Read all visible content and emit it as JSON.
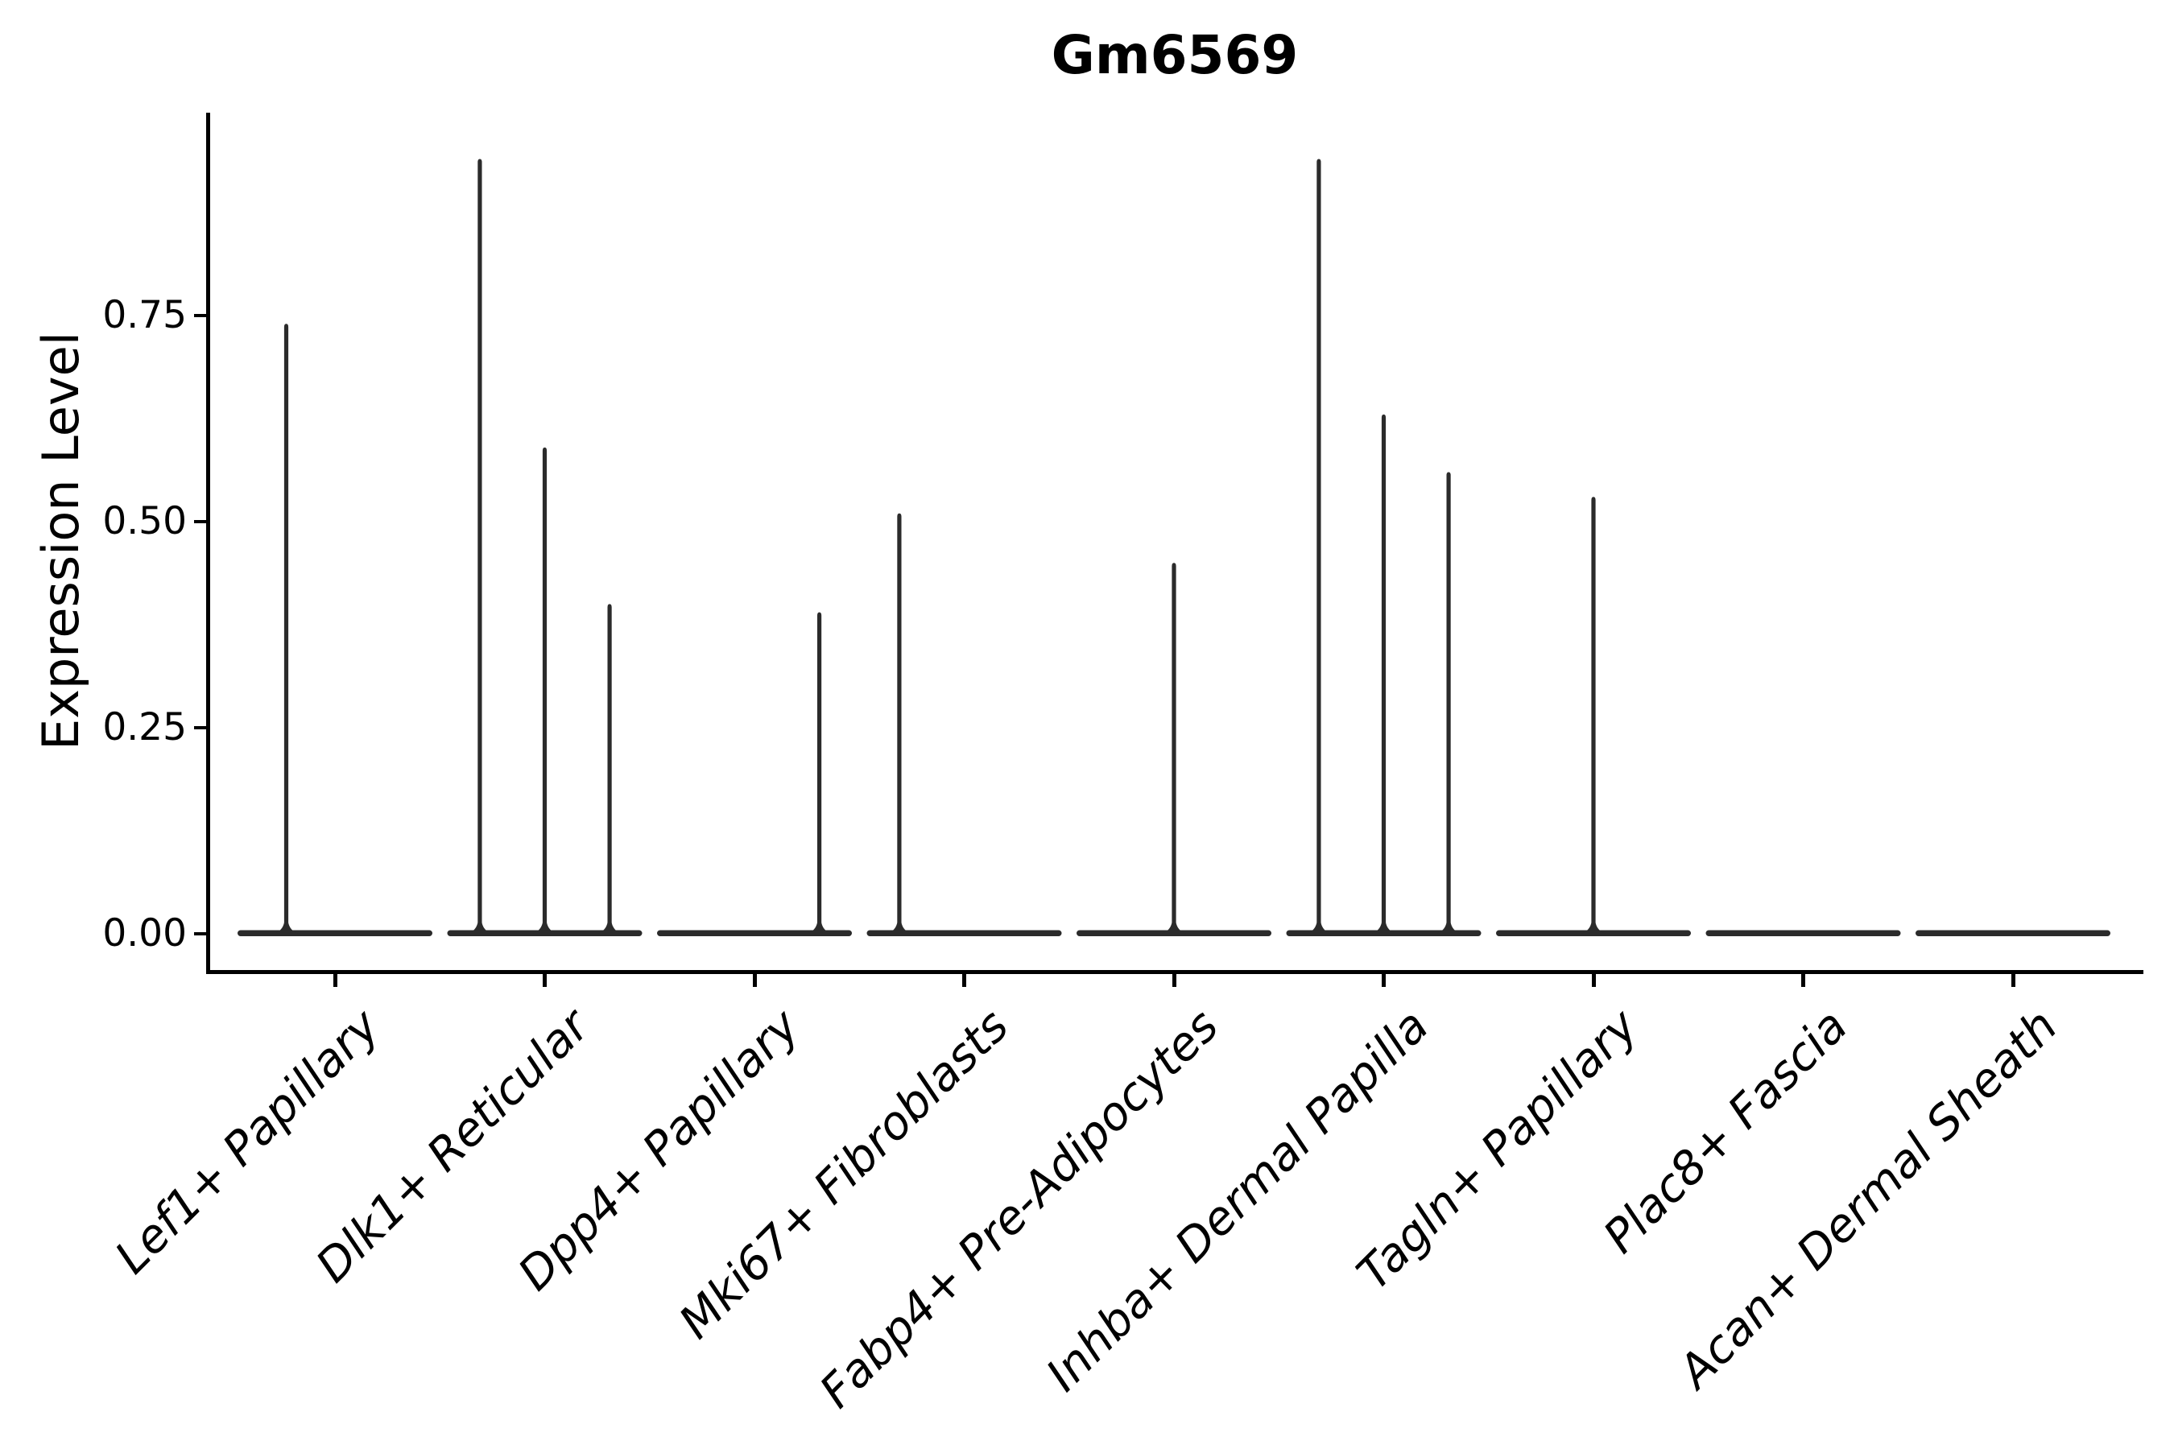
{
  "figure": {
    "title": "Gm6569",
    "background": "#ffffff"
  },
  "chart_data": {
    "type": "violin",
    "title": "Gm6569",
    "xlabel": "",
    "ylabel": "Expression Level",
    "ylim": [
      0,
      0.97
    ],
    "grid": false,
    "legend_position": "none",
    "colors": {
      "violin": "#2b2b2b",
      "axis": "#000000",
      "text": "#000000"
    },
    "yticks": [
      {
        "value": 0.0,
        "label": "0.00"
      },
      {
        "value": 0.25,
        "label": "0.25"
      },
      {
        "value": 0.5,
        "label": "0.50"
      },
      {
        "value": 0.75,
        "label": "0.75"
      }
    ],
    "categories": [
      "Lef1+ Papillary",
      "Dlk1+ Reticular",
      "Dpp4+ Papillary",
      "Mki67+ Fibroblasts",
      "Fabp4+ Pre-Adipocytes",
      "Inhba+ Dermal Papilla",
      "Tagln+ Papillary",
      "Plac8+ Fascia",
      "Acan+ Dermal Sheath"
    ],
    "violins": [
      {
        "category": "Lef1+ Papillary",
        "baseline_value": 0,
        "spikes": [
          {
            "value": 0.74,
            "pos": 0.25
          }
        ]
      },
      {
        "category": "Dlk1+ Reticular",
        "baseline_value": 0,
        "spikes": [
          {
            "value": 0.94,
            "pos": 0.167
          },
          {
            "value": 0.59,
            "pos": 0.5
          },
          {
            "value": 0.4,
            "pos": 0.833
          }
        ]
      },
      {
        "category": "Dpp4+ Papillary",
        "baseline_value": 0,
        "spikes": [
          {
            "value": 0.39,
            "pos": 0.833
          }
        ]
      },
      {
        "category": "Mki67+ Fibroblasts",
        "baseline_value": 0,
        "spikes": [
          {
            "value": 0.51,
            "pos": 0.167
          }
        ]
      },
      {
        "category": "Fabp4+ Pre-Adipocytes",
        "baseline_value": 0,
        "spikes": [
          {
            "value": 0.45,
            "pos": 0.5
          }
        ]
      },
      {
        "category": "Inhba+ Dermal Papilla",
        "baseline_value": 0,
        "spikes": [
          {
            "value": 0.94,
            "pos": 0.167
          },
          {
            "value": 0.63,
            "pos": 0.5
          },
          {
            "value": 0.56,
            "pos": 0.833
          }
        ]
      },
      {
        "category": "Tagln+ Papillary",
        "baseline_value": 0,
        "spikes": [
          {
            "value": 0.53,
            "pos": 0.5
          }
        ]
      },
      {
        "category": "Plac8+ Fascia",
        "baseline_value": 0,
        "spikes": []
      },
      {
        "category": "Acan+ Dermal Sheath",
        "baseline_value": 0,
        "spikes": []
      }
    ]
  }
}
